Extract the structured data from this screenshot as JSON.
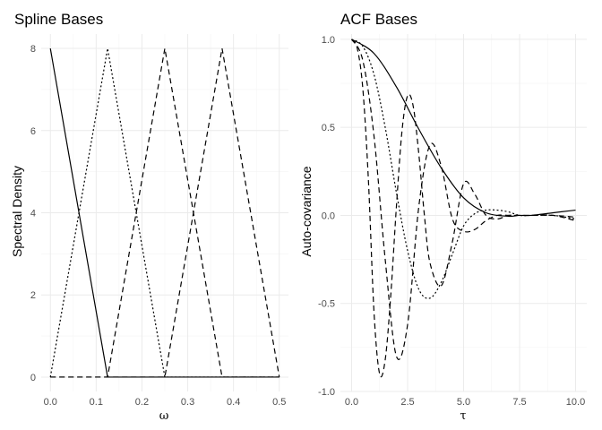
{
  "chart_data": [
    {
      "type": "line",
      "title": "Spline Bases",
      "xlabel": "ω",
      "ylabel": "Spectral Density",
      "xlim": [
        -0.02,
        0.52
      ],
      "ylim": [
        -0.35,
        8.35
      ],
      "xticks": [
        0.0,
        0.1,
        0.2,
        0.3,
        0.4,
        0.5
      ],
      "xtick_labels": [
        "0.0",
        "0.1",
        "0.2",
        "0.3",
        "0.4",
        "0.5"
      ],
      "yticks": [
        0,
        2,
        4,
        6,
        8
      ],
      "ytick_labels": [
        "0",
        "2",
        "4",
        "6",
        "8"
      ],
      "grid": true,
      "legend": "none",
      "series": [
        {
          "dash": "solid",
          "x": [
            0,
            0.125,
            0.5
          ],
          "y": [
            8,
            0,
            0
          ]
        },
        {
          "dash": "dotted",
          "x": [
            0,
            0.125,
            0.25,
            0.5
          ],
          "y": [
            0,
            8,
            0,
            0
          ]
        },
        {
          "dash": "dashed",
          "x": [
            0,
            0.125,
            0.25,
            0.375,
            0.5
          ],
          "y": [
            0,
            0,
            8,
            0,
            0
          ]
        },
        {
          "dash": "dashed",
          "x": [
            0,
            0.25,
            0.375,
            0.5
          ],
          "y": [
            0,
            0,
            8,
            0
          ]
        }
      ]
    },
    {
      "type": "line",
      "title": "ACF Bases",
      "xlabel": "τ",
      "ylabel": "Auto-covariance",
      "xlim": [
        -0.5,
        10.5
      ],
      "ylim": [
        -1.0,
        1.03
      ],
      "xticks": [
        0.0,
        2.5,
        5.0,
        7.5,
        10.0
      ],
      "xtick_labels": [
        "0.0",
        "2.5",
        "5.0",
        "7.5",
        "10.0"
      ],
      "yticks": [
        -1.0,
        -0.5,
        0.0,
        0.5,
        1.0
      ],
      "ytick_labels": [
        "-1.0",
        "-0.5",
        "0.0",
        "0.5",
        "1.0"
      ],
      "grid": true,
      "legend": "none",
      "series": [
        {
          "dash": "solid",
          "x": [
            0,
            1,
            2,
            3,
            4,
            5,
            6,
            7,
            7.5,
            8,
            9,
            10
          ],
          "y": [
            1.0,
            0.92,
            0.73,
            0.49,
            0.27,
            0.1,
            0.015,
            -0.005,
            0.0,
            0.0,
            0.015,
            0.03
          ]
        },
        {
          "dash": "dotted",
          "x": [
            0,
            0.5,
            1,
            1.5,
            2,
            2.5,
            3,
            3.5,
            4,
            4.5,
            5,
            5.5,
            6,
            6.5,
            7,
            7.5,
            8,
            9,
            10
          ],
          "y": [
            1.0,
            0.96,
            0.8,
            0.5,
            0.13,
            -0.2,
            -0.42,
            -0.47,
            -0.38,
            -0.22,
            -0.06,
            0.01,
            0.03,
            0.03,
            0.02,
            0.0,
            0.0,
            0.0,
            -0.02
          ]
        },
        {
          "dash": "dashed",
          "x": [
            0,
            0.5,
            1,
            1.5,
            2,
            2.5,
            3,
            3.5,
            4,
            4.5,
            5,
            5.5,
            6,
            6.5,
            7,
            7.5,
            8,
            9,
            10
          ],
          "y": [
            1.0,
            0.88,
            0.45,
            -0.25,
            -0.8,
            -0.62,
            0.05,
            0.4,
            0.28,
            -0.02,
            -0.09,
            -0.08,
            -0.03,
            0.0,
            0.0,
            0.0,
            0.0,
            0.0,
            -0.01
          ]
        },
        {
          "dash": "dashed",
          "x": [
            0,
            0.25,
            0.5,
            0.75,
            1,
            1.25,
            1.5,
            1.75,
            2,
            2.25,
            2.5,
            2.75,
            3,
            3.25,
            3.5,
            4,
            4.5,
            5,
            5.5,
            6,
            6.5,
            7,
            7.5,
            8,
            9,
            10
          ],
          "y": [
            1.0,
            0.95,
            0.72,
            0.2,
            -0.55,
            -0.9,
            -0.82,
            -0.45,
            0.05,
            0.48,
            0.68,
            0.62,
            0.35,
            0.0,
            -0.27,
            -0.4,
            -0.15,
            0.18,
            0.12,
            0.0,
            -0.02,
            0.0,
            0.0,
            0.0,
            0.0,
            -0.03
          ]
        }
      ]
    }
  ]
}
